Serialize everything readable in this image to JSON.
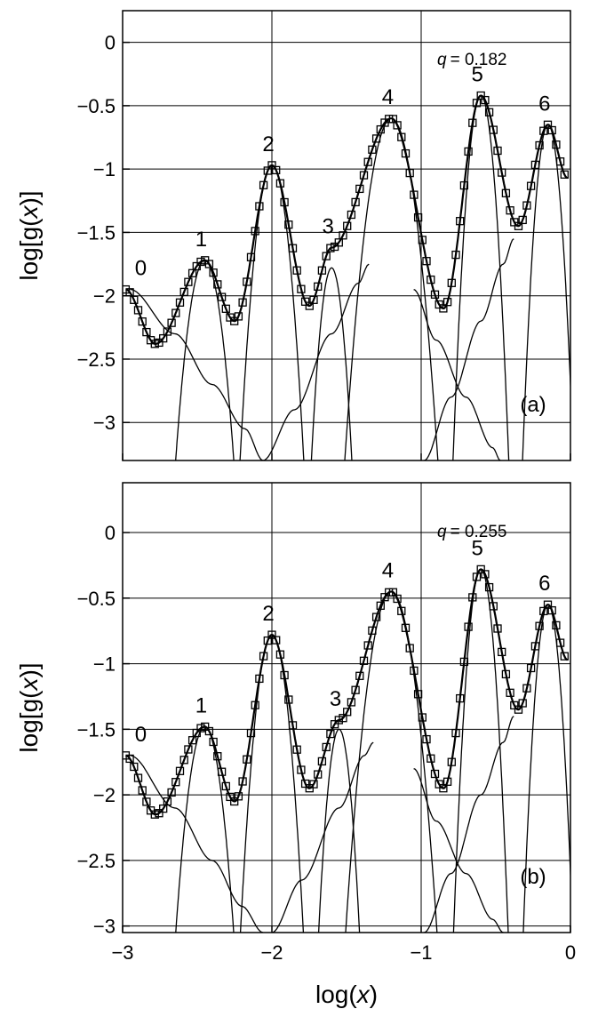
{
  "chart_data": [
    {
      "type": "scatter",
      "panel": "(a)",
      "q_symbol": "q",
      "q_value": "= 0.182",
      "xlabel_prefix": "log(",
      "xlabel_var": "x",
      "xlabel_suffix": ")",
      "ylabel_prefix": "log[g(",
      "ylabel_var": "x",
      "ylabel_suffix": ")]",
      "xlim": [
        -3,
        0
      ],
      "ylim": [
        -3.3,
        0.25
      ],
      "x_ticks": [
        -3,
        -2,
        -1,
        0
      ],
      "x_tick_labels": [
        "",
        "",
        "",
        ""
      ],
      "y_ticks": [
        0,
        -0.5,
        -1,
        -1.5,
        -2,
        -2.5,
        -3
      ],
      "y_tick_labels": [
        "0",
        "−0.5",
        "−1",
        "−1.5",
        "−2",
        "−2.5",
        "−3"
      ],
      "grid": true,
      "marker": "open-square",
      "peaks": [
        {
          "label": "0",
          "x": -2.95,
          "y": -1.95
        },
        {
          "label": "1",
          "x": -2.45,
          "y": -1.72
        },
        {
          "label": "2",
          "x": -2.0,
          "y": -0.97
        },
        {
          "label": "3",
          "x": -1.6,
          "y": -1.62
        },
        {
          "label": "4",
          "x": -1.2,
          "y": -0.6
        },
        {
          "label": "5",
          "x": -0.6,
          "y": -0.42
        },
        {
          "label": "6",
          "x": -0.15,
          "y": -0.65
        }
      ],
      "minima": [
        {
          "x": -2.78,
          "y": -2.38
        },
        {
          "x": -2.25,
          "y": -2.2
        },
        {
          "x": -1.75,
          "y": -2.08
        },
        {
          "x": -0.85,
          "y": -2.1
        },
        {
          "x": -0.35,
          "y": -1.45
        }
      ],
      "fit_curves": [
        {
          "center": -2.45,
          "peak": -1.72,
          "width": 0.155
        },
        {
          "center": -2.0,
          "peak": -0.97,
          "width": 0.14
        },
        {
          "center": -1.6,
          "peak": -1.78,
          "width": 0.11
        },
        {
          "center": -1.2,
          "peak": -0.6,
          "width": 0.19
        },
        {
          "center": -0.6,
          "peak": -0.42,
          "width": 0.11
        },
        {
          "center": -0.15,
          "peak": -0.65,
          "width": 0.105
        }
      ],
      "tails": [
        {
          "x": [
            -2.95,
            -2.65,
            -2.4,
            -2.18,
            -2.06
          ],
          "y": [
            -1.95,
            -2.3,
            -2.7,
            -3.05,
            -3.3
          ]
        },
        {
          "x": [
            -2.06,
            -1.85,
            -1.6,
            -1.42,
            -1.35
          ],
          "y": [
            -3.3,
            -2.9,
            -2.3,
            -1.9,
            -1.75
          ]
        },
        {
          "x": [
            -0.98,
            -0.8,
            -0.6,
            -0.45,
            -0.38
          ],
          "y": [
            -3.3,
            -2.8,
            -2.2,
            -1.75,
            -1.55
          ]
        },
        {
          "x": [
            -1.05,
            -0.9,
            -0.7,
            -0.52,
            -0.47
          ],
          "y": [
            -1.95,
            -2.35,
            -2.8,
            -3.2,
            -3.3
          ]
        }
      ]
    },
    {
      "type": "scatter",
      "panel": "(b)",
      "q_symbol": "q",
      "q_value": "= 0.255",
      "xlabel_prefix": "log(",
      "xlabel_var": "x",
      "xlabel_suffix": ")",
      "ylabel_prefix": "log[g(",
      "ylabel_var": "x",
      "ylabel_suffix": ")]",
      "xlim": [
        -3,
        0
      ],
      "ylim": [
        -3.05,
        0.38
      ],
      "x_ticks": [
        -3,
        -2,
        -1,
        0
      ],
      "x_tick_labels": [
        "−3",
        "−2",
        "−1",
        "0"
      ],
      "y_ticks": [
        0,
        -0.5,
        -1,
        -1.5,
        -2,
        -2.5,
        -3
      ],
      "y_tick_labels": [
        "0",
        "−0.5",
        "−1",
        "−1.5",
        "−2",
        "−2.5",
        "−3"
      ],
      "grid": true,
      "marker": "open-square",
      "peaks": [
        {
          "label": "0",
          "x": -2.95,
          "y": -1.7
        },
        {
          "label": "1",
          "x": -2.45,
          "y": -1.48
        },
        {
          "label": "2",
          "x": -2.0,
          "y": -0.78
        },
        {
          "label": "3",
          "x": -1.55,
          "y": -1.43
        },
        {
          "label": "4",
          "x": -1.2,
          "y": -0.45
        },
        {
          "label": "5",
          "x": -0.6,
          "y": -0.28
        },
        {
          "label": "6",
          "x": -0.15,
          "y": -0.55
        }
      ],
      "minima": [
        {
          "x": -2.78,
          "y": -2.15
        },
        {
          "x": -2.25,
          "y": -2.05
        },
        {
          "x": -1.75,
          "y": -1.95
        },
        {
          "x": -0.85,
          "y": -1.95
        },
        {
          "x": -0.35,
          "y": -1.35
        }
      ],
      "fit_curves": [
        {
          "center": -2.45,
          "peak": -1.48,
          "width": 0.155
        },
        {
          "center": -2.0,
          "peak": -0.78,
          "width": 0.14
        },
        {
          "center": -1.55,
          "peak": -1.5,
          "width": 0.11
        },
        {
          "center": -1.2,
          "peak": -0.45,
          "width": 0.19
        },
        {
          "center": -0.6,
          "peak": -0.28,
          "width": 0.11
        },
        {
          "center": -0.15,
          "peak": -0.55,
          "width": 0.105
        }
      ],
      "tails": [
        {
          "x": [
            -2.95,
            -2.65,
            -2.4,
            -2.2,
            -2.06
          ],
          "y": [
            -1.7,
            -2.1,
            -2.5,
            -2.85,
            -3.05
          ]
        },
        {
          "x": [
            -2.0,
            -1.8,
            -1.55,
            -1.38,
            -1.32
          ],
          "y": [
            -3.05,
            -2.65,
            -2.1,
            -1.7,
            -1.6
          ]
        },
        {
          "x": [
            -0.98,
            -0.8,
            -0.6,
            -0.45,
            -0.38
          ],
          "y": [
            -3.05,
            -2.6,
            -2.0,
            -1.6,
            -1.4
          ]
        },
        {
          "x": [
            -1.05,
            -0.9,
            -0.7,
            -0.52,
            -0.45
          ],
          "y": [
            -1.8,
            -2.2,
            -2.6,
            -2.95,
            -3.05
          ]
        }
      ]
    }
  ]
}
